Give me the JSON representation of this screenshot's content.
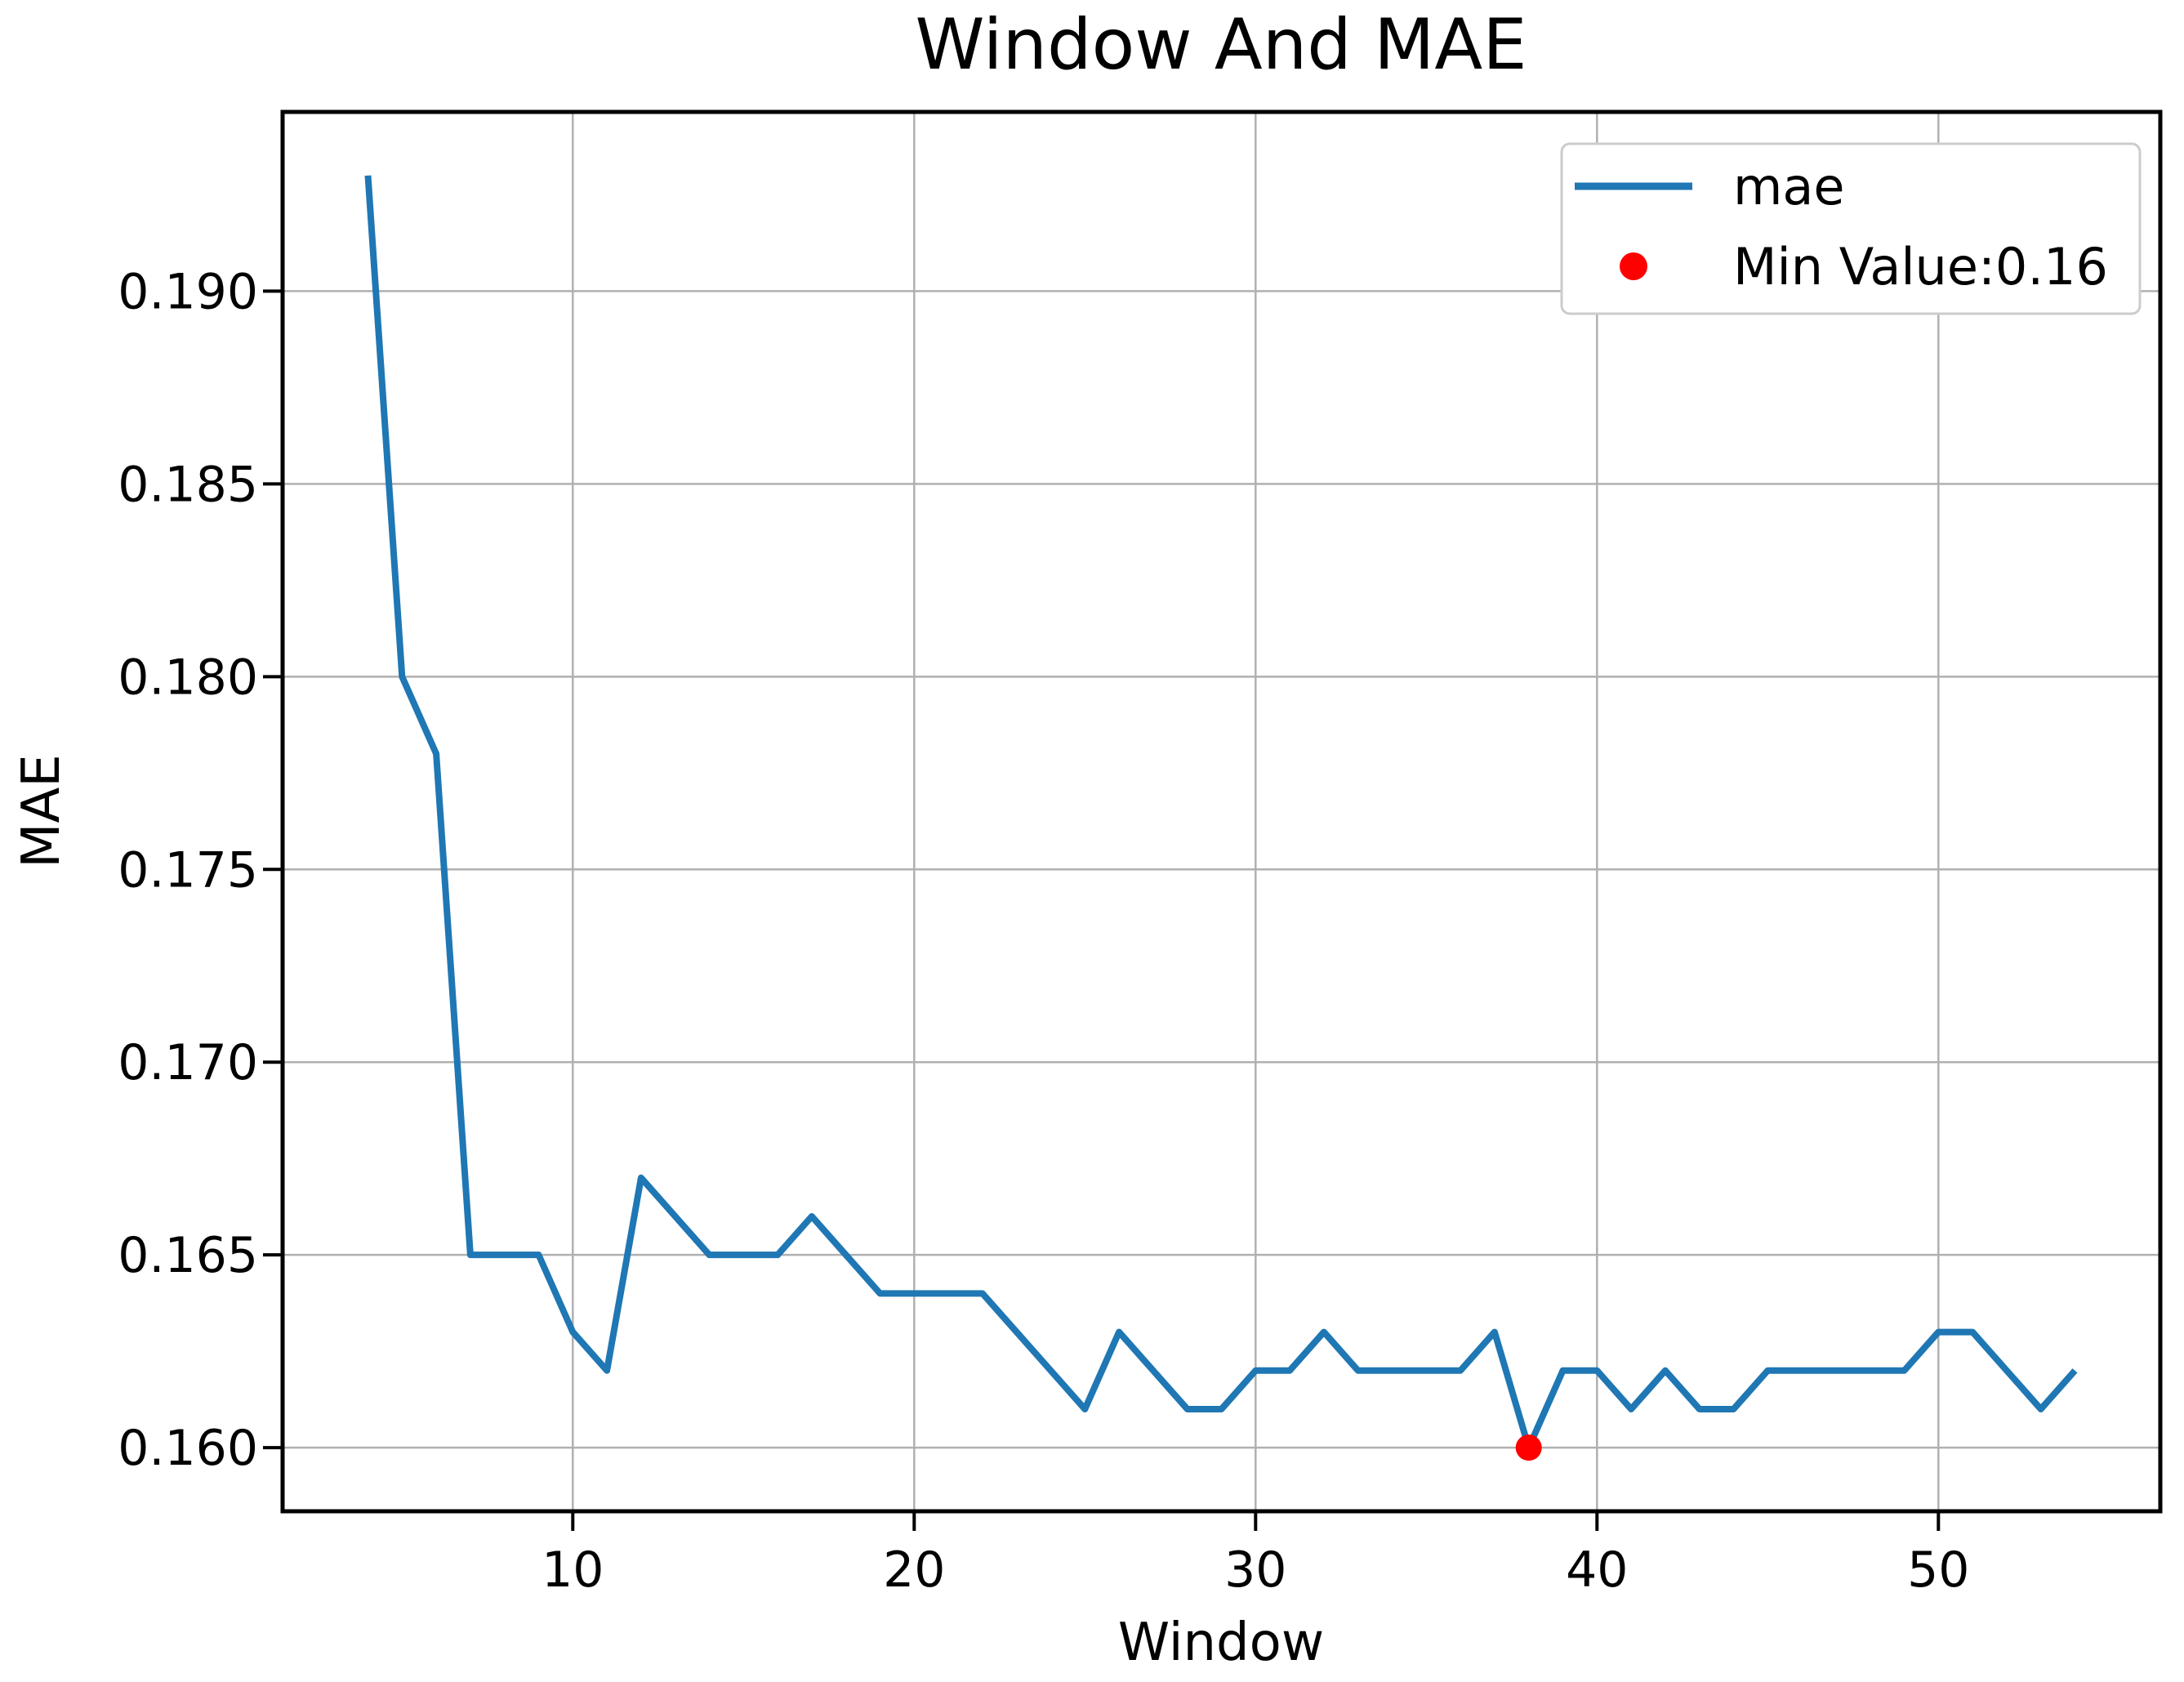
{
  "title": "Window And MAE",
  "axes": {
    "xlabel": "Window",
    "ylabel": "MAE"
  },
  "legend": {
    "position": "upper right",
    "items": [
      {
        "label": "mae",
        "marker": "line",
        "color": "#1f77b4"
      },
      {
        "label": "Min Value:0.16",
        "marker": "dot",
        "color": "#ff0000"
      }
    ]
  },
  "colors": {
    "line": "#1f77b4",
    "min_marker": "#ff0000",
    "grid": "#b0b0b0",
    "spine": "#000000",
    "background": "#ffffff"
  },
  "chart_data": {
    "type": "line",
    "title": "Window And MAE",
    "xlabel": "Window",
    "ylabel": "MAE",
    "grid": true,
    "legend_position": "upper right",
    "xlim": [
      1.5,
      56.5
    ],
    "ylim": [
      0.15835,
      0.19465
    ],
    "xticks": [
      10,
      20,
      30,
      40,
      50
    ],
    "xtick_labels": [
      "10",
      "20",
      "30",
      "40",
      "50"
    ],
    "yticks": [
      0.16,
      0.165,
      0.17,
      0.175,
      0.18,
      0.185,
      0.19
    ],
    "ytick_labels": [
      "0.160",
      "0.165",
      "0.170",
      "0.175",
      "0.180",
      "0.185",
      "0.190"
    ],
    "x": [
      4,
      5,
      6,
      7,
      8,
      9,
      10,
      11,
      12,
      13,
      14,
      15,
      16,
      17,
      18,
      19,
      20,
      21,
      22,
      23,
      24,
      25,
      26,
      27,
      28,
      29,
      30,
      31,
      32,
      33,
      34,
      35,
      36,
      37,
      38,
      39,
      40,
      41,
      42,
      43,
      44,
      45,
      46,
      47,
      48,
      49,
      50,
      51,
      52,
      53,
      54
    ],
    "series": [
      {
        "name": "mae",
        "color": "#1f77b4",
        "values": [
          0.193,
          0.18,
          0.178,
          0.165,
          0.165,
          0.165,
          0.163,
          0.162,
          0.167,
          0.166,
          0.165,
          0.165,
          0.165,
          0.166,
          0.165,
          0.164,
          0.164,
          0.164,
          0.164,
          0.163,
          0.162,
          0.161,
          0.163,
          0.162,
          0.161,
          0.161,
          0.162,
          0.162,
          0.163,
          0.162,
          0.162,
          0.162,
          0.162,
          0.163,
          0.16,
          0.162,
          0.162,
          0.161,
          0.162,
          0.161,
          0.161,
          0.162,
          0.162,
          0.162,
          0.162,
          0.162,
          0.163,
          0.163,
          0.162,
          0.161,
          0.162
        ]
      }
    ],
    "min_point": {
      "x": 38,
      "y": 0.16,
      "label": "Min Value:0.16",
      "color": "#ff0000"
    }
  }
}
